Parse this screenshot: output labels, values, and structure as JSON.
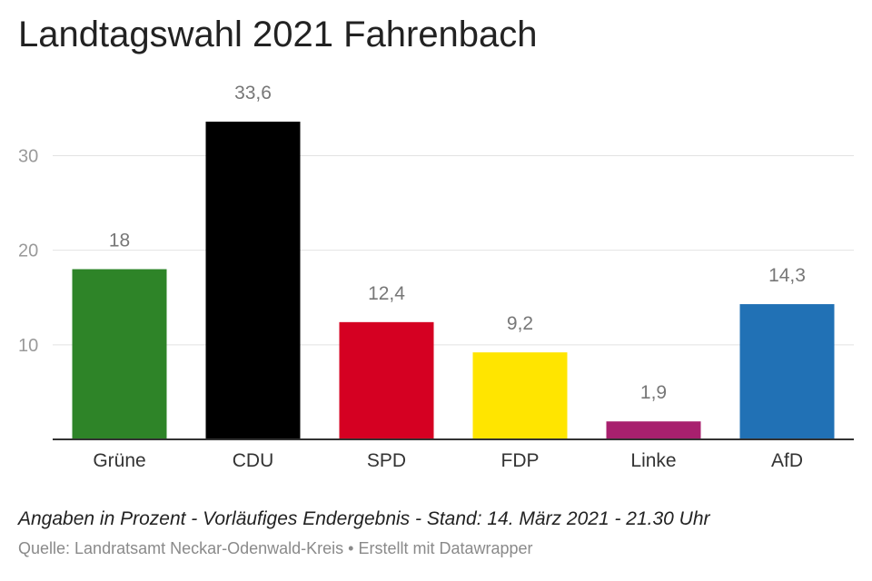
{
  "chart_data": {
    "type": "bar",
    "title": "Landtagswahl 2021 Fahrenbach",
    "categories": [
      "Grüne",
      "CDU",
      "SPD",
      "FDP",
      "Linke",
      "AfD"
    ],
    "values": [
      18,
      33.6,
      12.4,
      9.2,
      1.9,
      14.3
    ],
    "value_labels": [
      "18",
      "33,6",
      "12,4",
      "9,2",
      "1,9",
      "14,3"
    ],
    "colors": [
      "#2e8428",
      "#000000",
      "#d50022",
      "#ffe500",
      "#a8206e",
      "#2171b5"
    ],
    "y_ticks": [
      10,
      20,
      30
    ],
    "ylim": [
      0,
      33.6
    ],
    "grid": true,
    "xlabel": "",
    "ylabel": ""
  },
  "footer": {
    "note": "Angaben in Prozent - Vorläufiges Endergebnis - Stand: 14. März 2021 - 21.30 Uhr",
    "source": "Quelle: Landratsamt Neckar-Odenwald-Kreis • Erstellt mit Datawrapper"
  }
}
